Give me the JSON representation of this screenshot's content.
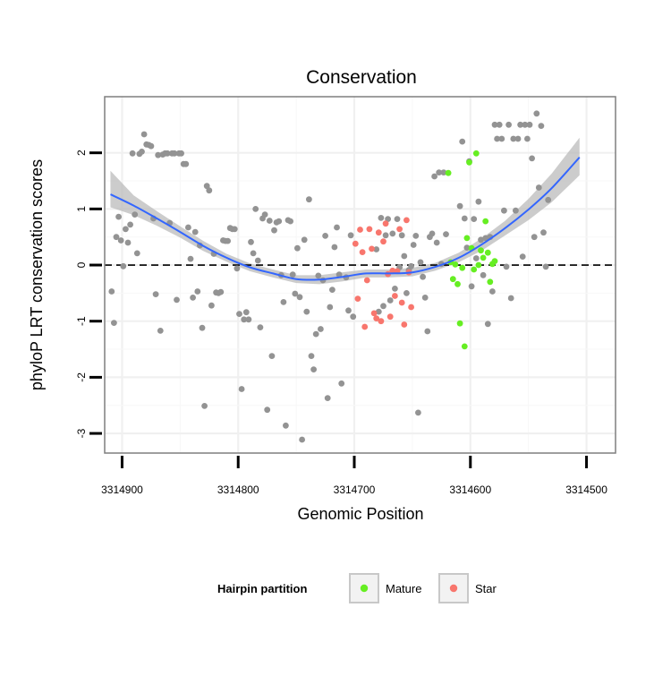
{
  "chart_data": {
    "type": "scatter",
    "title": "Conservation",
    "xlabel": "Genomic Position",
    "ylabel": "phyloP LRT conservation scores",
    "xlim": [
      3314915,
      3314475
    ],
    "x_reversed": true,
    "ylim": [
      -3.35,
      3.0
    ],
    "x_ticks": [
      3314900,
      3314800,
      3314700,
      3314600,
      3314500
    ],
    "x_tick_labels": [
      "3314900",
      "3314800",
      "3314700",
      "3314600",
      "3314500"
    ],
    "y_ticks": [
      -3,
      -2,
      -1,
      0,
      1,
      2
    ],
    "y_tick_labels": [
      "-3",
      "-2",
      "-1",
      "0",
      "1",
      "2"
    ],
    "reference_line": {
      "y": 0,
      "style": "dashed",
      "color": "#000000"
    },
    "grid": true,
    "legend": {
      "title": "Hairpin partition",
      "position": "bottom",
      "entries": [
        {
          "label": "Mature",
          "color": "#66ee22"
        },
        {
          "label": "Star",
          "color": "#f8766d"
        }
      ]
    },
    "colors": {
      "other": "#939393",
      "smooth": "#3366ff",
      "band": "#bbbbbb"
    },
    "series": [
      {
        "name": "",
        "color": "#939393",
        "points": [
          [
            3314909,
            -0.47
          ],
          [
            3314907,
            -1.03
          ],
          [
            3314905,
            0.5
          ],
          [
            3314903,
            0.86
          ],
          [
            3314901,
            0.44
          ],
          [
            3314899,
            -0.02
          ],
          [
            3314897,
            0.64
          ],
          [
            3314895,
            0.4
          ],
          [
            3314893,
            0.72
          ],
          [
            3314891,
            1.99
          ],
          [
            3314889,
            0.9
          ],
          [
            3314887,
            0.21
          ],
          [
            3314885,
            1.98
          ],
          [
            3314883,
            2.02
          ],
          [
            3314881,
            2.33
          ],
          [
            3314879,
            2.15
          ],
          [
            3314877,
            2.14
          ],
          [
            3314875,
            2.12
          ],
          [
            3314873,
            0.83
          ],
          [
            3314871,
            -0.52
          ],
          [
            3314869,
            1.96
          ],
          [
            3314867,
            -1.17
          ],
          [
            3314865,
            1.97
          ],
          [
            3314863,
            1.99
          ],
          [
            3314861,
            1.99
          ],
          [
            3314859,
            0.75
          ],
          [
            3314857,
            1.99
          ],
          [
            3314855,
            1.99
          ],
          [
            3314853,
            -0.62
          ],
          [
            3314851,
            1.99
          ],
          [
            3314849,
            1.99
          ],
          [
            3314847,
            1.8
          ],
          [
            3314845,
            1.8
          ],
          [
            3314843,
            0.67
          ],
          [
            3314841,
            0.11
          ],
          [
            3314839,
            -0.58
          ],
          [
            3314837,
            0.59
          ],
          [
            3314835,
            -0.47
          ],
          [
            3314833,
            0.35
          ],
          [
            3314831,
            -1.12
          ],
          [
            3314829,
            -2.51
          ],
          [
            3314827,
            1.41
          ],
          [
            3314825,
            1.33
          ],
          [
            3314823,
            -0.72
          ],
          [
            3314821,
            0.2
          ],
          [
            3314819,
            -0.49
          ],
          [
            3314817,
            -0.5
          ],
          [
            3314815,
            -0.48
          ],
          [
            3314813,
            0.44
          ],
          [
            3314811,
            0.43
          ],
          [
            3314809,
            0.43
          ],
          [
            3314807,
            0.66
          ],
          [
            3314805,
            0.64
          ],
          [
            3314803,
            0.64
          ],
          [
            3314801,
            -0.06
          ],
          [
            3314799,
            -0.87
          ],
          [
            3314797,
            -2.21
          ],
          [
            3314795,
            -0.97
          ],
          [
            3314793,
            -0.84
          ],
          [
            3314791,
            -0.97
          ],
          [
            3314789,
            0.41
          ],
          [
            3314787,
            0.21
          ],
          [
            3314785,
            1.0
          ],
          [
            3314783,
            0.08
          ],
          [
            3314781,
            -1.11
          ],
          [
            3314779,
            0.83
          ],
          [
            3314777,
            0.9
          ],
          [
            3314775,
            -2.58
          ],
          [
            3314773,
            0.79
          ],
          [
            3314771,
            -1.62
          ],
          [
            3314769,
            0.62
          ],
          [
            3314767,
            0.76
          ],
          [
            3314765,
            0.78
          ],
          [
            3314763,
            -0.18
          ],
          [
            3314761,
            -0.66
          ],
          [
            3314759,
            -2.86
          ],
          [
            3314757,
            0.8
          ],
          [
            3314755,
            0.78
          ],
          [
            3314753,
            -0.17
          ],
          [
            3314751,
            -0.51
          ],
          [
            3314749,
            0.3
          ],
          [
            3314747,
            -0.57
          ],
          [
            3314745,
            -3.11
          ],
          [
            3314743,
            0.45
          ],
          [
            3314741,
            -0.83
          ],
          [
            3314739,
            1.17
          ],
          [
            3314737,
            -1.62
          ],
          [
            3314735,
            -1.86
          ],
          [
            3314733,
            -1.23
          ],
          [
            3314731,
            -0.19
          ],
          [
            3314729,
            -1.14
          ],
          [
            3314727,
            -0.27
          ],
          [
            3314725,
            0.52
          ],
          [
            3314723,
            -2.37
          ],
          [
            3314721,
            -0.75
          ],
          [
            3314719,
            -0.44
          ],
          [
            3314717,
            0.32
          ],
          [
            3314715,
            0.67
          ],
          [
            3314713,
            -0.17
          ],
          [
            3314711,
            -2.11
          ],
          [
            3314707,
            -0.22
          ],
          [
            3314705,
            -0.81
          ],
          [
            3314703,
            0.53
          ],
          [
            3314701,
            -0.92
          ],
          [
            3314681,
            0.28
          ],
          [
            3314679,
            -0.83
          ],
          [
            3314677,
            0.84
          ],
          [
            3314675,
            -0.73
          ],
          [
            3314673,
            0.53
          ],
          [
            3314671,
            0.82
          ],
          [
            3314669,
            -0.63
          ],
          [
            3314667,
            0.56
          ],
          [
            3314665,
            -0.42
          ],
          [
            3314663,
            0.82
          ],
          [
            3314661,
            -0.04
          ],
          [
            3314659,
            0.53
          ],
          [
            3314657,
            0.16
          ],
          [
            3314655,
            -0.5
          ],
          [
            3314653,
            -0.09
          ],
          [
            3314651,
            -0.02
          ],
          [
            3314649,
            0.36
          ],
          [
            3314647,
            0.52
          ],
          [
            3314645,
            -2.63
          ],
          [
            3314643,
            0.05
          ],
          [
            3314641,
            -0.21
          ],
          [
            3314639,
            -0.58
          ],
          [
            3314637,
            -1.18
          ],
          [
            3314635,
            0.5
          ],
          [
            3314633,
            0.56
          ],
          [
            3314631,
            1.58
          ],
          [
            3314629,
            0.4
          ],
          [
            3314627,
            1.65
          ],
          [
            3314625,
            0.02
          ],
          [
            3314623,
            1.65
          ],
          [
            3314621,
            0.55
          ],
          [
            3314609,
            1.05
          ],
          [
            3314607,
            2.2
          ],
          [
            3314605,
            0.83
          ],
          [
            3314603,
            0.31
          ],
          [
            3314601,
            1.85
          ],
          [
            3314599,
            -0.38
          ],
          [
            3314597,
            0.82
          ],
          [
            3314595,
            0.12
          ],
          [
            3314593,
            1.13
          ],
          [
            3314591,
            0.45
          ],
          [
            3314589,
            -0.18
          ],
          [
            3314587,
            0.48
          ],
          [
            3314585,
            -1.05
          ],
          [
            3314583,
            0.5
          ],
          [
            3314581,
            -0.47
          ],
          [
            3314579,
            2.5
          ],
          [
            3314577,
            2.25
          ],
          [
            3314575,
            2.5
          ],
          [
            3314573,
            2.25
          ],
          [
            3314571,
            0.97
          ],
          [
            3314569,
            -0.03
          ],
          [
            3314567,
            2.5
          ],
          [
            3314565,
            -0.59
          ],
          [
            3314563,
            2.25
          ],
          [
            3314561,
            0.97
          ],
          [
            3314559,
            2.25
          ],
          [
            3314557,
            2.5
          ],
          [
            3314555,
            0.15
          ],
          [
            3314553,
            2.5
          ],
          [
            3314551,
            2.25
          ],
          [
            3314549,
            2.5
          ],
          [
            3314547,
            1.9
          ],
          [
            3314545,
            0.5
          ],
          [
            3314543,
            2.7
          ],
          [
            3314541,
            1.38
          ],
          [
            3314539,
            2.48
          ],
          [
            3314537,
            0.58
          ],
          [
            3314535,
            -0.03
          ],
          [
            3314533,
            1.16
          ]
        ]
      },
      {
        "name": "Star",
        "color": "#f8766d",
        "points": [
          [
            3314699,
            0.38
          ],
          [
            3314697,
            -0.6
          ],
          [
            3314695,
            0.63
          ],
          [
            3314693,
            0.23
          ],
          [
            3314691,
            -1.1
          ],
          [
            3314689,
            -0.27
          ],
          [
            3314687,
            0.64
          ],
          [
            3314685,
            0.29
          ],
          [
            3314683,
            -0.86
          ],
          [
            3314681,
            -0.95
          ],
          [
            3314679,
            0.58
          ],
          [
            3314677,
            -1.0
          ],
          [
            3314675,
            0.42
          ],
          [
            3314673,
            0.74
          ],
          [
            3314671,
            -0.16
          ],
          [
            3314669,
            -0.92
          ],
          [
            3314667,
            -0.1
          ],
          [
            3314665,
            -0.55
          ],
          [
            3314663,
            -0.11
          ],
          [
            3314661,
            0.64
          ],
          [
            3314659,
            -0.67
          ],
          [
            3314657,
            -1.06
          ],
          [
            3314655,
            0.8
          ],
          [
            3314653,
            -0.13
          ],
          [
            3314651,
            -0.75
          ]
        ]
      },
      {
        "name": "Mature",
        "color": "#66ee22",
        "points": [
          [
            3314619,
            1.64
          ],
          [
            3314617,
            0.05
          ],
          [
            3314615,
            -0.25
          ],
          [
            3314613,
            0.01
          ],
          [
            3314611,
            -0.34
          ],
          [
            3314609,
            -1.04
          ],
          [
            3314607,
            -0.05
          ],
          [
            3314605,
            -1.45
          ],
          [
            3314603,
            0.48
          ],
          [
            3314601,
            1.83
          ],
          [
            3314599,
            0.3
          ],
          [
            3314597,
            -0.08
          ],
          [
            3314595,
            1.99
          ],
          [
            3314593,
            0.0
          ],
          [
            3314591,
            0.26
          ],
          [
            3314589,
            0.13
          ],
          [
            3314587,
            0.78
          ],
          [
            3314585,
            0.22
          ],
          [
            3314583,
            -0.3
          ],
          [
            3314581,
            0.02
          ],
          [
            3314579,
            0.07
          ]
        ]
      }
    ],
    "smooth": {
      "x": [
        3314910,
        3314890,
        3314870,
        3314850,
        3314830,
        3314810,
        3314790,
        3314770,
        3314750,
        3314730,
        3314710,
        3314690,
        3314670,
        3314650,
        3314630,
        3314610,
        3314590,
        3314570,
        3314550,
        3314530,
        3314506
      ],
      "y": [
        1.26,
        1.06,
        0.83,
        0.59,
        0.34,
        0.13,
        -0.04,
        -0.15,
        -0.25,
        -0.26,
        -0.21,
        -0.15,
        -0.15,
        -0.13,
        -0.03,
        0.13,
        0.37,
        0.66,
        0.99,
        1.37,
        1.92
      ],
      "band_low": [
        1.03,
        0.89,
        0.7,
        0.49,
        0.25,
        0.06,
        -0.11,
        -0.22,
        -0.32,
        -0.34,
        -0.29,
        -0.22,
        -0.22,
        -0.2,
        -0.1,
        0.05,
        0.26,
        0.53,
        0.8,
        1.12,
        1.6
      ],
      "band_high": [
        1.68,
        1.24,
        0.96,
        0.69,
        0.43,
        0.2,
        0.03,
        -0.08,
        -0.18,
        -0.18,
        -0.13,
        -0.08,
        -0.08,
        -0.05,
        0.04,
        0.22,
        0.48,
        0.79,
        1.18,
        1.63,
        2.27
      ]
    }
  }
}
